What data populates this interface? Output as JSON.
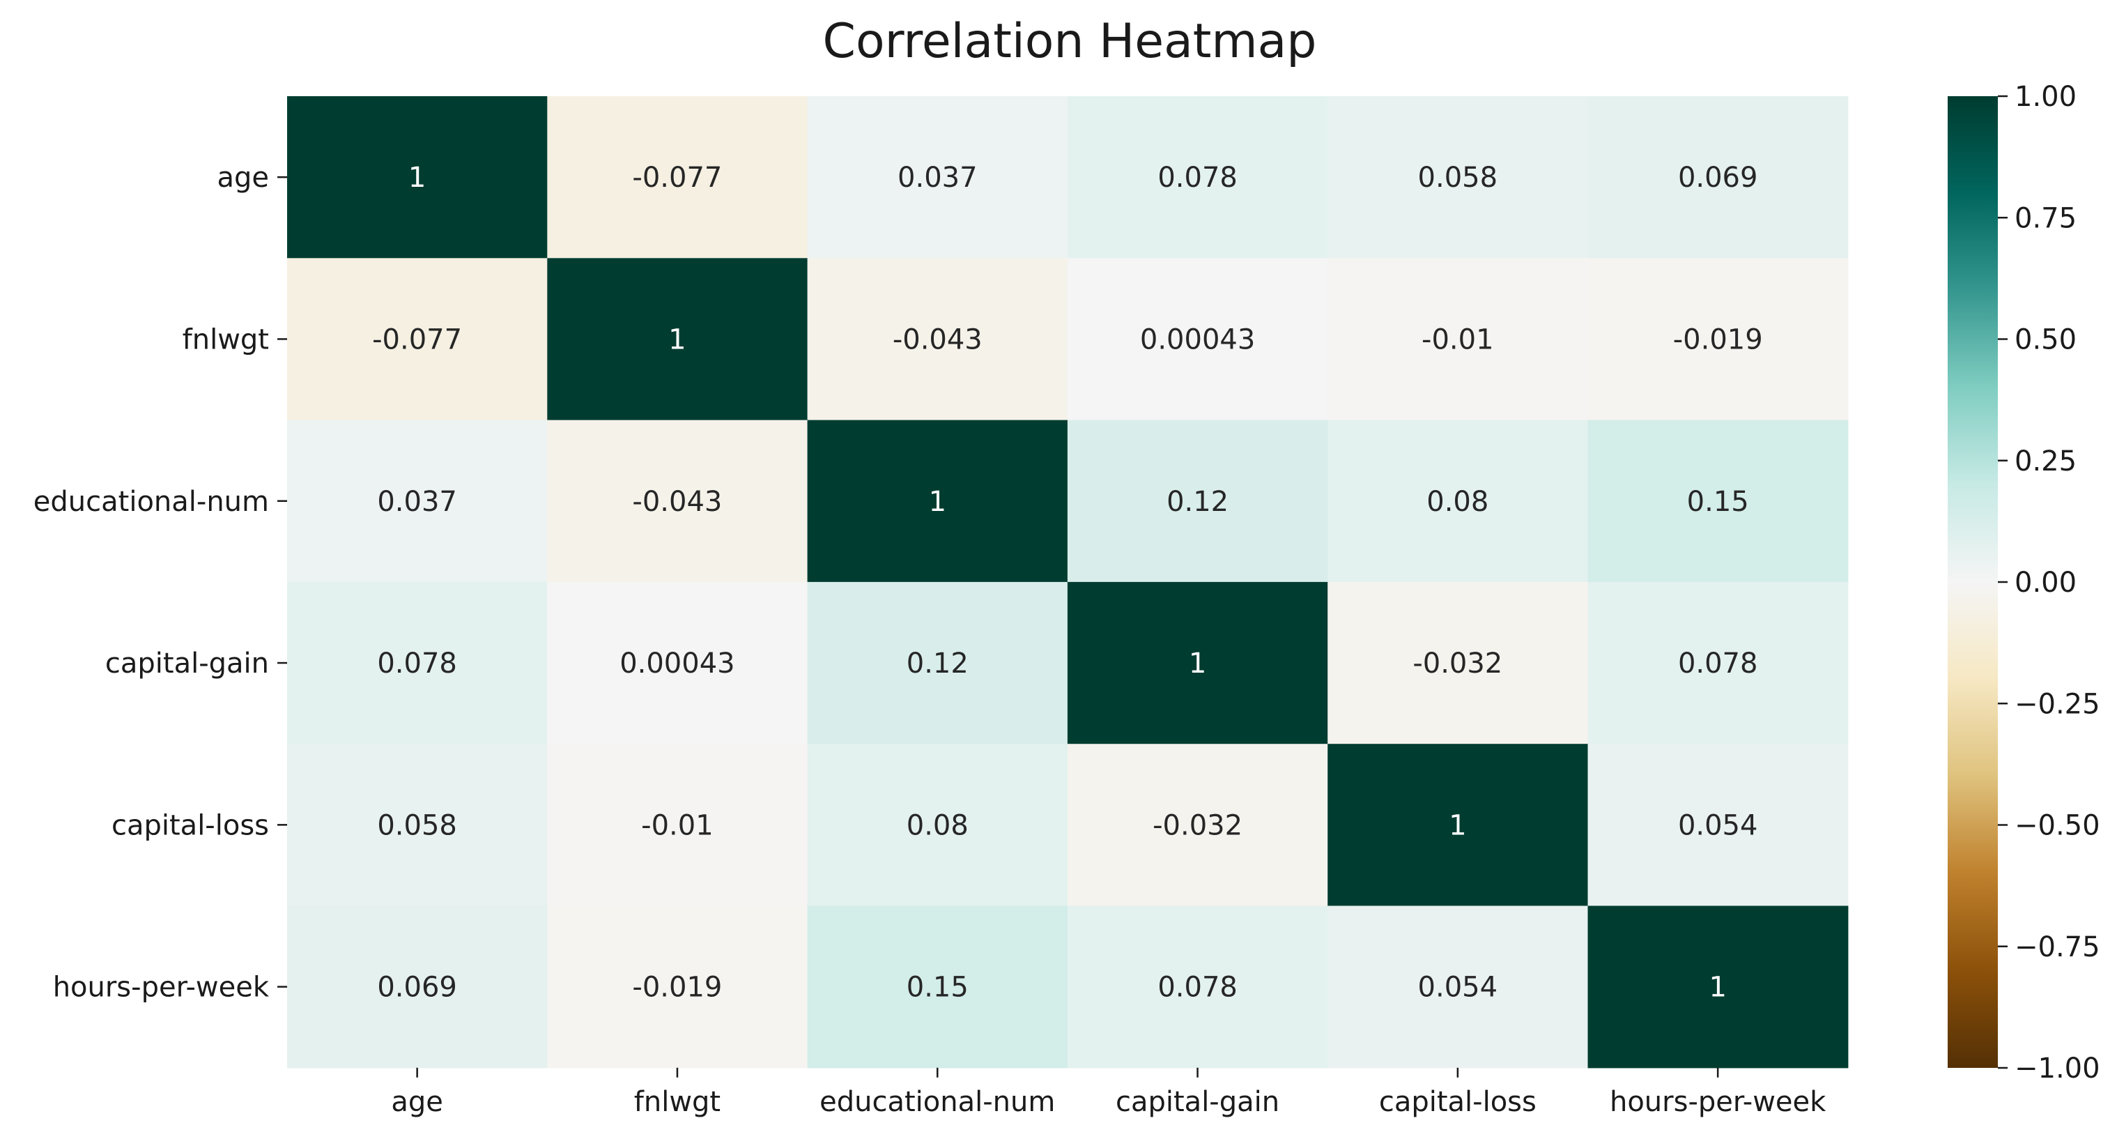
{
  "chart_data": {
    "type": "heatmap",
    "title": "Correlation Heatmap",
    "row_labels": [
      "age",
      "fnlwgt",
      "educational-num",
      "capital-gain",
      "capital-loss",
      "hours-per-week"
    ],
    "col_labels": [
      "age",
      "fnlwgt",
      "educational-num",
      "capital-gain",
      "capital-loss",
      "hours-per-week"
    ],
    "values": [
      [
        1,
        -0.077,
        0.037,
        0.078,
        0.058,
        0.069
      ],
      [
        -0.077,
        1,
        -0.043,
        0.00043,
        -0.01,
        -0.019
      ],
      [
        0.037,
        -0.043,
        1,
        0.12,
        0.08,
        0.15
      ],
      [
        0.078,
        0.00043,
        0.12,
        1,
        -0.032,
        0.078
      ],
      [
        0.058,
        -0.01,
        0.08,
        -0.032,
        1,
        0.054
      ],
      [
        0.069,
        -0.019,
        0.15,
        0.078,
        0.054,
        1
      ]
    ],
    "annotations": [
      [
        "1",
        "-0.077",
        "0.037",
        "0.078",
        "0.058",
        "0.069"
      ],
      [
        "-0.077",
        "1",
        "-0.043",
        "0.00043",
        "-0.01",
        "-0.019"
      ],
      [
        "0.037",
        "-0.043",
        "1",
        "0.12",
        "0.08",
        "0.15"
      ],
      [
        "0.078",
        "0.00043",
        "0.12",
        "1",
        "-0.032",
        "0.078"
      ],
      [
        "0.058",
        "-0.01",
        "0.08",
        "-0.032",
        "1",
        "0.054"
      ],
      [
        "0.069",
        "-0.019",
        "0.15",
        "0.078",
        "0.054",
        "1"
      ]
    ],
    "colormap": "BrBG",
    "colormap_stops": [
      "#543005",
      "#8c510a",
      "#bf812d",
      "#dfc27d",
      "#f6e8c3",
      "#f5f5f5",
      "#c7eae5",
      "#80cdc1",
      "#35978f",
      "#01665e",
      "#003c30"
    ],
    "vmin": -1,
    "vmax": 1,
    "colorbar_ticks": [
      "1.00",
      "0.75",
      "0.50",
      "0.25",
      "0.00",
      "−0.25",
      "−0.50",
      "−0.75",
      "−1.00"
    ],
    "colorbar_tick_values": [
      1,
      0.75,
      0.5,
      0.25,
      0,
      -0.25,
      -0.5,
      -0.75,
      -1
    ],
    "grid": false,
    "legend": "colorbar-right"
  }
}
